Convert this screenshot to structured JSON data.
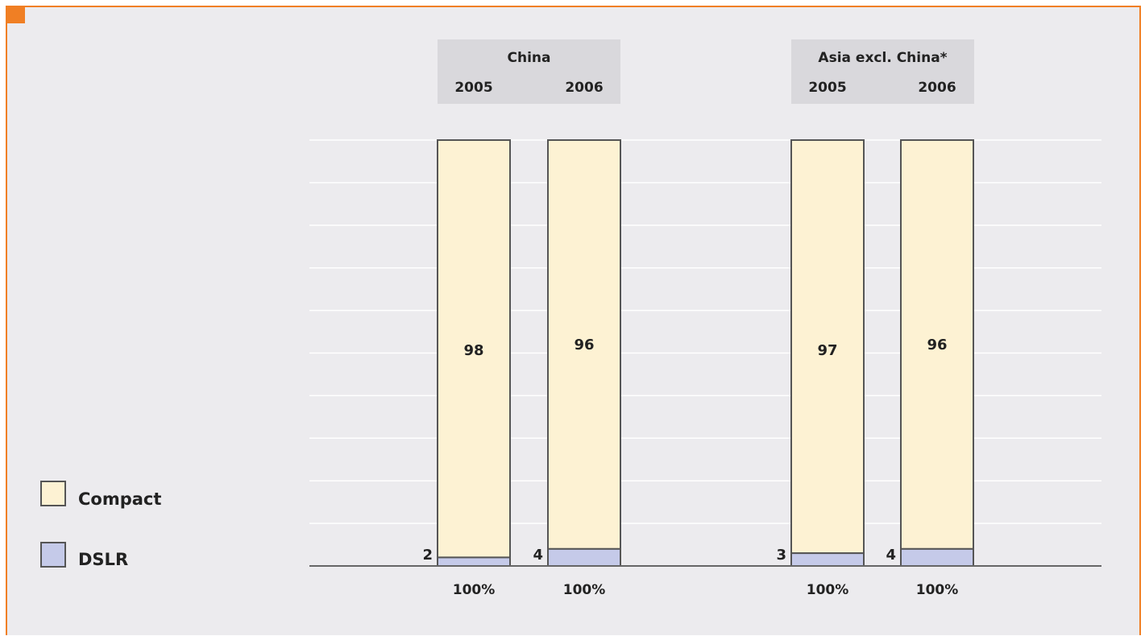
{
  "chart_data": {
    "type": "bar",
    "stacked": true,
    "groups": [
      {
        "name": "China",
        "categories": [
          "2005",
          "2006"
        ]
      },
      {
        "name": "Asia excl. China*",
        "categories": [
          "2005",
          "2006"
        ]
      }
    ],
    "series": [
      {
        "name": "DSLR",
        "values": [
          2,
          4,
          3,
          4
        ],
        "labels": [
          "2",
          "4",
          "3",
          "4"
        ]
      },
      {
        "name": "Compact",
        "values": [
          98,
          96,
          97,
          96
        ],
        "labels": [
          "98",
          "96",
          "97",
          "96"
        ]
      }
    ],
    "totals": [
      "100%",
      "100%",
      "100%",
      "100%"
    ],
    "ylim": [
      0,
      100
    ],
    "grid": true,
    "legend_position": "left",
    "colors": {
      "Compact": "#fdf2d3",
      "DSLR": "#c5cae9",
      "bar_border": "#555555",
      "accent": "#f07f24",
      "background": "#ecebee"
    }
  }
}
